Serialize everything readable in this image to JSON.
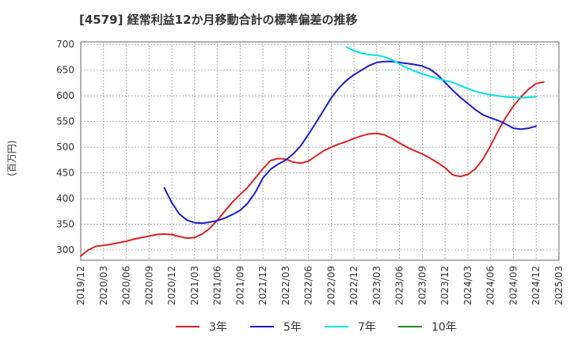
{
  "chart_data": {
    "type": "line",
    "title": "[4579]  経常利益12か月移動合計の標準偏差の推移",
    "ylabel": "(百万円)",
    "xlabel": "",
    "ylim": [
      280,
      705
    ],
    "yticks": [
      300,
      350,
      400,
      450,
      500,
      550,
      600,
      650,
      700
    ],
    "xlim": [
      "2019-12",
      "2025-03"
    ],
    "xticks": [
      "2019/12",
      "2020/03",
      "2020/06",
      "2020/09",
      "2020/12",
      "2021/03",
      "2021/06",
      "2021/09",
      "2021/12",
      "2022/03",
      "2022/06",
      "2022/09",
      "2022/12",
      "2023/03",
      "2023/06",
      "2023/09",
      "2023/12",
      "2024/03",
      "2024/06",
      "2024/09",
      "2024/12",
      "2025/03"
    ],
    "grid": true,
    "legend_position": "bottom",
    "series": [
      {
        "name": "3年",
        "color": "#dd2222",
        "points": [
          [
            "2019-12",
            288
          ],
          [
            "2020-01",
            300
          ],
          [
            "2020-02",
            307
          ],
          [
            "2020-03",
            309
          ],
          [
            "2020-04",
            311
          ],
          [
            "2020-05",
            314
          ],
          [
            "2020-06",
            317
          ],
          [
            "2020-07",
            321
          ],
          [
            "2020-08",
            324
          ],
          [
            "2020-09",
            327
          ],
          [
            "2020-10",
            330
          ],
          [
            "2020-11",
            331
          ],
          [
            "2020-12",
            330
          ],
          [
            "2021-01",
            326
          ],
          [
            "2021-02",
            323
          ],
          [
            "2021-03",
            324
          ],
          [
            "2021-04",
            331
          ],
          [
            "2021-05",
            342
          ],
          [
            "2021-06",
            358
          ],
          [
            "2021-07",
            376
          ],
          [
            "2021-08",
            393
          ],
          [
            "2021-09",
            408
          ],
          [
            "2021-10",
            422
          ],
          [
            "2021-11",
            440
          ],
          [
            "2021-12",
            458
          ],
          [
            "2022-01",
            474
          ],
          [
            "2022-02",
            478
          ],
          [
            "2022-03",
            477
          ],
          [
            "2022-04",
            471
          ],
          [
            "2022-05",
            469
          ],
          [
            "2022-06",
            473
          ],
          [
            "2022-07",
            483
          ],
          [
            "2022-08",
            493
          ],
          [
            "2022-09",
            500
          ],
          [
            "2022-10",
            506
          ],
          [
            "2022-11",
            511
          ],
          [
            "2022-12",
            517
          ],
          [
            "2023-01",
            522
          ],
          [
            "2023-02",
            526
          ],
          [
            "2023-03",
            527
          ],
          [
            "2023-04",
            524
          ],
          [
            "2023-05",
            517
          ],
          [
            "2023-06",
            508
          ],
          [
            "2023-07",
            500
          ],
          [
            "2023-08",
            493
          ],
          [
            "2023-09",
            487
          ],
          [
            "2023-10",
            479
          ],
          [
            "2023-11",
            470
          ],
          [
            "2023-12",
            460
          ],
          [
            "2024-01",
            446
          ],
          [
            "2024-02",
            443
          ],
          [
            "2024-03",
            447
          ],
          [
            "2024-04",
            458
          ],
          [
            "2024-05",
            477
          ],
          [
            "2024-06",
            503
          ],
          [
            "2024-07",
            532
          ],
          [
            "2024-08",
            558
          ],
          [
            "2024-09",
            580
          ],
          [
            "2024-10",
            598
          ],
          [
            "2024-11",
            613
          ],
          [
            "2024-12",
            624
          ],
          [
            "2025-01",
            627
          ]
        ]
      },
      {
        "name": "5年",
        "color": "#1c1ccc",
        "points": [
          [
            "2020-11",
            421
          ],
          [
            "2020-12",
            392
          ],
          [
            "2021-01",
            370
          ],
          [
            "2021-02",
            358
          ],
          [
            "2021-03",
            353
          ],
          [
            "2021-04",
            352
          ],
          [
            "2021-05",
            354
          ],
          [
            "2021-06",
            357
          ],
          [
            "2021-07",
            362
          ],
          [
            "2021-08",
            369
          ],
          [
            "2021-09",
            377
          ],
          [
            "2021-10",
            391
          ],
          [
            "2021-11",
            412
          ],
          [
            "2021-12",
            440
          ],
          [
            "2022-01",
            457
          ],
          [
            "2022-02",
            467
          ],
          [
            "2022-03",
            475
          ],
          [
            "2022-04",
            487
          ],
          [
            "2022-05",
            503
          ],
          [
            "2022-06",
            525
          ],
          [
            "2022-07",
            548
          ],
          [
            "2022-08",
            572
          ],
          [
            "2022-09",
            596
          ],
          [
            "2022-10",
            615
          ],
          [
            "2022-11",
            630
          ],
          [
            "2022-12",
            641
          ],
          [
            "2023-01",
            650
          ],
          [
            "2023-02",
            659
          ],
          [
            "2023-03",
            665
          ],
          [
            "2023-04",
            667
          ],
          [
            "2023-05",
            667
          ],
          [
            "2023-06",
            665
          ],
          [
            "2023-07",
            663
          ],
          [
            "2023-08",
            661
          ],
          [
            "2023-09",
            658
          ],
          [
            "2023-10",
            652
          ],
          [
            "2023-11",
            641
          ],
          [
            "2023-12",
            626
          ],
          [
            "2024-01",
            611
          ],
          [
            "2024-02",
            597
          ],
          [
            "2024-03",
            585
          ],
          [
            "2024-04",
            573
          ],
          [
            "2024-05",
            563
          ],
          [
            "2024-06",
            557
          ],
          [
            "2024-07",
            552
          ],
          [
            "2024-08",
            545
          ],
          [
            "2024-09",
            537
          ],
          [
            "2024-10",
            535
          ],
          [
            "2024-11",
            537
          ],
          [
            "2024-12",
            541
          ]
        ]
      },
      {
        "name": "7年",
        "color": "#00e5e5",
        "points": [
          [
            "2022-11",
            695
          ],
          [
            "2022-12",
            688
          ],
          [
            "2023-01",
            683
          ],
          [
            "2023-02",
            680
          ],
          [
            "2023-03",
            679
          ],
          [
            "2023-04",
            676
          ],
          [
            "2023-05",
            670
          ],
          [
            "2023-06",
            662
          ],
          [
            "2023-07",
            654
          ],
          [
            "2023-08",
            648
          ],
          [
            "2023-09",
            643
          ],
          [
            "2023-10",
            638
          ],
          [
            "2023-11",
            634
          ],
          [
            "2023-12",
            630
          ],
          [
            "2024-01",
            626
          ],
          [
            "2024-02",
            620
          ],
          [
            "2024-03",
            614
          ],
          [
            "2024-04",
            609
          ],
          [
            "2024-05",
            605
          ],
          [
            "2024-06",
            602
          ],
          [
            "2024-07",
            600
          ],
          [
            "2024-08",
            598
          ],
          [
            "2024-09",
            597
          ],
          [
            "2024-10",
            596
          ],
          [
            "2024-11",
            597
          ],
          [
            "2024-12",
            598
          ]
        ]
      },
      {
        "name": "10年",
        "color": "#228822",
        "points": []
      }
    ]
  }
}
